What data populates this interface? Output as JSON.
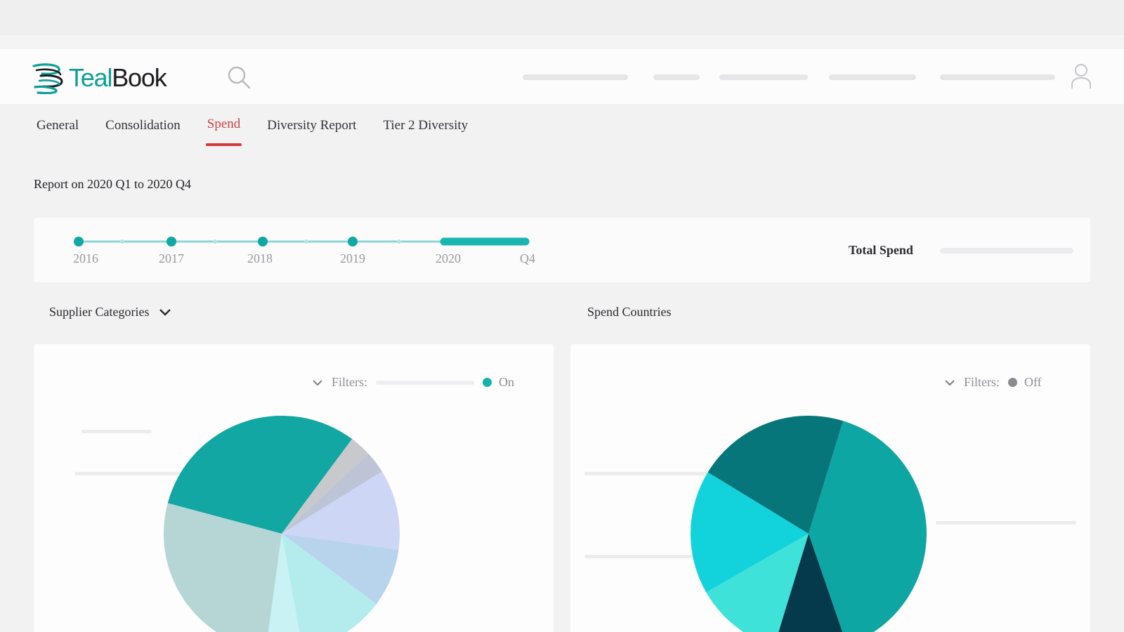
{
  "header": {
    "logo_prefix": "Teal",
    "logo_suffix": "Book",
    "colors": {
      "teal": "#0e9e9a",
      "dark": "#1d1d20"
    }
  },
  "tabs": [
    {
      "label": "General",
      "active": false
    },
    {
      "label": "Consolidation",
      "active": false
    },
    {
      "label": "Spend",
      "active": true
    },
    {
      "label": "Diversity Report",
      "active": false
    },
    {
      "label": "Tier 2 Diversity",
      "active": false
    }
  ],
  "report_range": "Report on 2020 Q1 to 2020 Q4",
  "timeline": {
    "labels": [
      "2016",
      "2017",
      "2018",
      "2019",
      "2020",
      "Q4"
    ],
    "selected_range": "2020 Q1 – Q4",
    "colors": {
      "track": "#19b5b0",
      "dot": "#0fa8a3"
    }
  },
  "total_spend": {
    "label": "Total Spend"
  },
  "supplier_categories": {
    "title": "Supplier Categories",
    "filters_label": "Filters:",
    "filter_state": "On",
    "filter_dot_color": "#15b3ae",
    "chart_data": {
      "type": "pie",
      "values": [
        31,
        3,
        3,
        11,
        8,
        12,
        5,
        27
      ],
      "colors": [
        "#12a7a2",
        "#c7c9cc",
        "#bcc4d6",
        "#cdd6f4",
        "#b8d4ec",
        "#b4ecee",
        "#c8f2f3",
        "#b6d6d6"
      ],
      "start_angle_deg": -165
    }
  },
  "spend_countries": {
    "title": "Spend Countries",
    "filters_label": "Filters:",
    "filter_state": "Off",
    "filter_dot_color": "#8a8a8f",
    "chart_data": {
      "type": "pie",
      "values": [
        40,
        10,
        12,
        17,
        21
      ],
      "colors": [
        "#0ea6a2",
        "#053a4c",
        "#3ee2d8",
        "#12d2dc",
        "#06767a"
      ],
      "start_angle_deg": -73
    }
  }
}
